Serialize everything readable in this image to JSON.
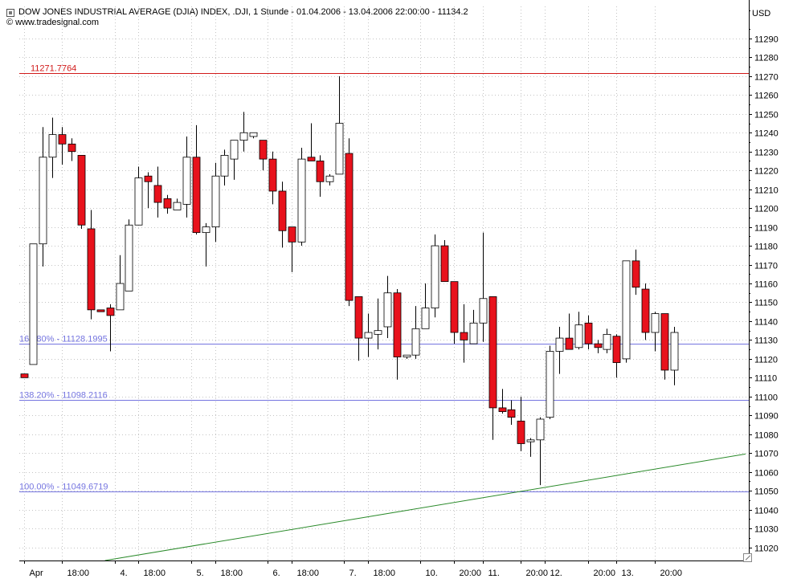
{
  "header": {
    "title": "DOW JONES INDUSTRIAL AVERAGE (DJIA) INDEX, .DJI, 1 Stunde - 01.04.2006 - 13.04.2006 22:00:00 - 11134.2",
    "copyright": "© www.tradesignal.com",
    "title_icon": "box-icon"
  },
  "currency": "USD",
  "chart_data": {
    "type": "candlestick",
    "title": "DOW JONES INDUSTRIAL AVERAGE (DJIA) INDEX, .DJI, 1 Stunde - 01.04.2006 - 13.04.2006 22:00:00 - 11134.2",
    "ylabel": "USD",
    "ylim": [
      11013,
      11307
    ],
    "y_ticks": [
      11020,
      11030,
      11040,
      11050,
      11060,
      11070,
      11080,
      11090,
      11100,
      11110,
      11120,
      11130,
      11140,
      11150,
      11160,
      11170,
      11180,
      11190,
      11200,
      11210,
      11220,
      11230,
      11240,
      11250,
      11260,
      11270,
      11280,
      11290
    ],
    "x_ticks": [
      {
        "label": "Apr",
        "index": 0
      },
      {
        "label": "18:00",
        "index": 4
      },
      {
        "label": "4.",
        "index": 9.5
      },
      {
        "label": "18:00",
        "index": 12
      },
      {
        "label": "5.",
        "index": 17.5
      },
      {
        "label": "18:00",
        "index": 20
      },
      {
        "label": "6.",
        "index": 25.5
      },
      {
        "label": "18:00",
        "index": 28
      },
      {
        "label": "7.",
        "index": 33.5
      },
      {
        "label": "18:00",
        "index": 36
      },
      {
        "label": "10.",
        "index": 41.5
      },
      {
        "label": "20:00",
        "index": 45
      },
      {
        "label": "11.",
        "index": 48
      },
      {
        "label": "20:00",
        "index": 52
      },
      {
        "label": "12.",
        "index": 54.5
      },
      {
        "label": "20:00",
        "index": 59
      },
      {
        "label": "13.",
        "index": 62
      },
      {
        "label": "20:00",
        "index": 66
      }
    ],
    "grid": true,
    "candles": [
      {
        "o": 11112,
        "h": 11112,
        "l": 11110,
        "c": 11110
      },
      {
        "o": 11117,
        "h": 11181,
        "l": 11117,
        "c": 11181
      },
      {
        "o": 11181,
        "h": 11243,
        "l": 11169,
        "c": 11227
      },
      {
        "o": 11227,
        "h": 11248,
        "l": 11216,
        "c": 11239
      },
      {
        "o": 11239,
        "h": 11243,
        "l": 11223,
        "c": 11234
      },
      {
        "o": 11234,
        "h": 11237,
        "l": 11225,
        "c": 11230
      },
      {
        "o": 11228,
        "h": 11228,
        "l": 11189,
        "c": 11191
      },
      {
        "o": 11189,
        "h": 11199,
        "l": 11141,
        "c": 11146
      },
      {
        "o": 11146,
        "h": 11146,
        "l": 11145,
        "c": 11145
      },
      {
        "o": 11147,
        "h": 11149,
        "l": 11124,
        "c": 11143
      },
      {
        "o": 11146,
        "h": 11175,
        "l": 11146,
        "c": 11160
      },
      {
        "o": 11156,
        "h": 11194,
        "l": 11156,
        "c": 11191
      },
      {
        "o": 11191,
        "h": 11222,
        "l": 11191,
        "c": 11216
      },
      {
        "o": 11217,
        "h": 11219,
        "l": 11200,
        "c": 11214
      },
      {
        "o": 11212,
        "h": 11222,
        "l": 11195,
        "c": 11203
      },
      {
        "o": 11205,
        "h": 11207,
        "l": 11197,
        "c": 11200
      },
      {
        "o": 11199,
        "h": 11205,
        "l": 11199,
        "c": 11203
      },
      {
        "o": 11202,
        "h": 11238,
        "l": 11195,
        "c": 11227
      },
      {
        "o": 11227,
        "h": 11244,
        "l": 11186,
        "c": 11187
      },
      {
        "o": 11187,
        "h": 11192,
        "l": 11169,
        "c": 11190
      },
      {
        "o": 11190,
        "h": 11224,
        "l": 11182,
        "c": 11217
      },
      {
        "o": 11217,
        "h": 11231,
        "l": 11212,
        "c": 11228
      },
      {
        "o": 11226,
        "h": 11236,
        "l": 11215,
        "c": 11236
      },
      {
        "o": 11236,
        "h": 11251,
        "l": 11230,
        "c": 11240
      },
      {
        "o": 11238,
        "h": 11240,
        "l": 11237,
        "c": 11240
      },
      {
        "o": 11236,
        "h": 11236,
        "l": 11220,
        "c": 11226
      },
      {
        "o": 11226,
        "h": 11230,
        "l": 11202,
        "c": 11209
      },
      {
        "o": 11209,
        "h": 11214,
        "l": 11179,
        "c": 11188
      },
      {
        "o": 11190,
        "h": 11190,
        "l": 11166,
        "c": 11182
      },
      {
        "o": 11182,
        "h": 11232,
        "l": 11180,
        "c": 11226
      },
      {
        "o": 11227,
        "h": 11245,
        "l": 11225,
        "c": 11225
      },
      {
        "o": 11225,
        "h": 11228,
        "l": 11206,
        "c": 11214
      },
      {
        "o": 11214,
        "h": 11218,
        "l": 11212,
        "c": 11217
      },
      {
        "o": 11218,
        "h": 11270,
        "l": 11218,
        "c": 11245
      },
      {
        "o": 11229,
        "h": 11237,
        "l": 11148,
        "c": 11151
      },
      {
        "o": 11153,
        "h": 11153,
        "l": 11119,
        "c": 11131
      },
      {
        "o": 11131,
        "h": 11144,
        "l": 11121,
        "c": 11134
      },
      {
        "o": 11133,
        "h": 11152,
        "l": 11125,
        "c": 11135
      },
      {
        "o": 11137,
        "h": 11164,
        "l": 11131,
        "c": 11155
      },
      {
        "o": 11155,
        "h": 11157,
        "l": 11109,
        "c": 11121
      },
      {
        "o": 11121,
        "h": 11122,
        "l": 11120,
        "c": 11122
      },
      {
        "o": 11122,
        "h": 11148,
        "l": 11120,
        "c": 11136
      },
      {
        "o": 11136,
        "h": 11160,
        "l": 11136,
        "c": 11147
      },
      {
        "o": 11147,
        "h": 11186,
        "l": 11142,
        "c": 11180
      },
      {
        "o": 11180,
        "h": 11183,
        "l": 11161,
        "c": 11161
      },
      {
        "o": 11161,
        "h": 11161,
        "l": 11128,
        "c": 11134
      },
      {
        "o": 11134,
        "h": 11149,
        "l": 11118,
        "c": 11130
      },
      {
        "o": 11128,
        "h": 11146,
        "l": 11128,
        "c": 11139
      },
      {
        "o": 11139,
        "h": 11187,
        "l": 11129,
        "c": 11152
      },
      {
        "o": 11153,
        "h": 11153,
        "l": 11077,
        "c": 11094
      },
      {
        "o": 11094,
        "h": 11104,
        "l": 11091,
        "c": 11092
      },
      {
        "o": 11093,
        "h": 11098,
        "l": 11085,
        "c": 11089
      },
      {
        "o": 11087,
        "h": 11100,
        "l": 11071,
        "c": 11075
      },
      {
        "o": 11076,
        "h": 11078,
        "l": 11068,
        "c": 11077
      },
      {
        "o": 11077,
        "h": 11089,
        "l": 11053,
        "c": 11088
      },
      {
        "o": 11089,
        "h": 11127,
        "l": 11088,
        "c": 11124
      },
      {
        "o": 11124,
        "h": 11137,
        "l": 11112,
        "c": 11131
      },
      {
        "o": 11131,
        "h": 11144,
        "l": 11125,
        "c": 11125
      },
      {
        "o": 11126,
        "h": 11145,
        "l": 11125,
        "c": 11138
      },
      {
        "o": 11139,
        "h": 11143,
        "l": 11125,
        "c": 11128
      },
      {
        "o": 11128,
        "h": 11130,
        "l": 11123,
        "c": 11126
      },
      {
        "o": 11125,
        "h": 11136,
        "l": 11123,
        "c": 11133
      },
      {
        "o": 11132,
        "h": 11133,
        "l": 11110,
        "c": 11118
      },
      {
        "o": 11120,
        "h": 11172,
        "l": 11118,
        "c": 11172
      },
      {
        "o": 11172,
        "h": 11178,
        "l": 11154,
        "c": 11158
      },
      {
        "o": 11157,
        "h": 11160,
        "l": 11130,
        "c": 11134
      },
      {
        "o": 11134,
        "h": 11145,
        "l": 11124,
        "c": 11144
      },
      {
        "o": 11144,
        "h": 11144,
        "l": 11109,
        "c": 11114
      },
      {
        "o": 11114,
        "h": 11137,
        "l": 11106,
        "c": 11134
      }
    ],
    "levels": [
      {
        "label": "11271.7764",
        "value": 11271.7764,
        "color": "#d11a1a"
      },
      {
        "label": "161.80% - 11128.1995",
        "value": 11128.1995,
        "color": "#7575e0"
      },
      {
        "label": "138.20% - 11098.2116",
        "value": 11098.2116,
        "color": "#7575e0"
      },
      {
        "label": "100.00% - 11049.6719",
        "value": 11049.6719,
        "color": "#7575e0"
      }
    ],
    "trendline": {
      "color": "#2a8a2a",
      "from": {
        "x": 8.5,
        "y": 11013
      },
      "to": {
        "x": 75.5,
        "y": 11069.5
      }
    },
    "colors": {
      "up": "#ffffff",
      "down": "#e8121c",
      "outline": "#000000",
      "grid": "#c4c4c4"
    }
  }
}
